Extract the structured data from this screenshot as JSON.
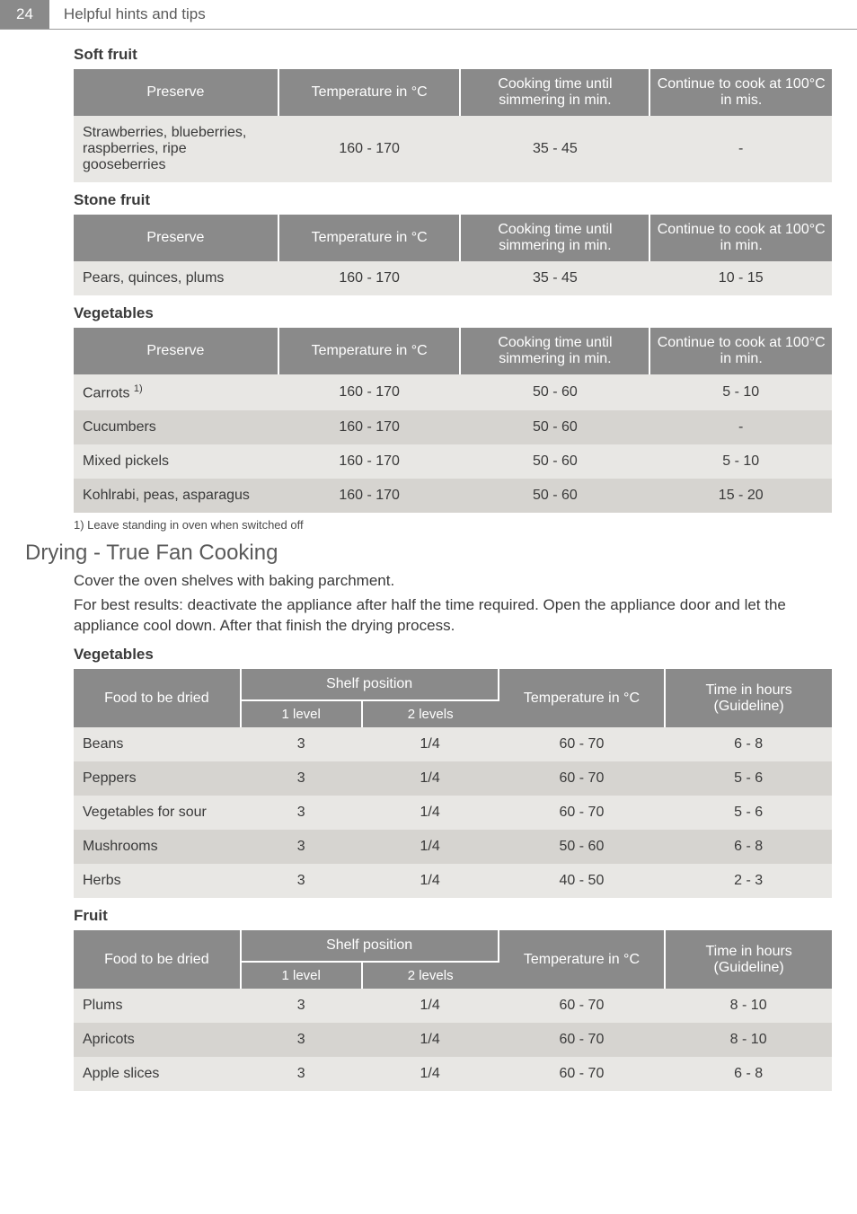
{
  "header": {
    "page_number": "24",
    "section_title": "Helpful hints and tips"
  },
  "soft_fruit": {
    "heading": "Soft fruit",
    "columns": [
      "Preserve",
      "Temperature in °C",
      "Cooking time until simmering in min.",
      "Continue to cook at 100°C in mis."
    ],
    "rows": [
      {
        "preserve": "Strawberries, blueberries, raspberries, ripe gooseberries",
        "temp": "160 - 170",
        "cook": "35 - 45",
        "cont": "-"
      }
    ]
  },
  "stone_fruit": {
    "heading": "Stone fruit",
    "columns": [
      "Preserve",
      "Temperature in °C",
      "Cooking time until simmering in min.",
      "Continue to cook at 100°C in min."
    ],
    "rows": [
      {
        "preserve": "Pears, quinces, plums",
        "temp": "160 - 170",
        "cook": "35 - 45",
        "cont": "10 - 15"
      }
    ]
  },
  "vegetables": {
    "heading": "Vegetables",
    "columns": [
      "Preserve",
      "Temperature in °C",
      "Cooking time until simmering in min.",
      "Continue to cook at 100°C in min."
    ],
    "rows": [
      {
        "preserve_html": "Carrots <span class=\"sup\">1)</span>",
        "preserve": "Carrots 1)",
        "temp": "160 - 170",
        "cook": "50 - 60",
        "cont": "5 - 10"
      },
      {
        "preserve": "Cucumbers",
        "temp": "160 - 170",
        "cook": "50 - 60",
        "cont": "-"
      },
      {
        "preserve": "Mixed pickels",
        "temp": "160 - 170",
        "cook": "50 - 60",
        "cont": "5 - 10"
      },
      {
        "preserve": "Kohlrabi, peas, asparagus",
        "temp": "160 - 170",
        "cook": "50 - 60",
        "cont": "15 - 20"
      }
    ],
    "footnote": "1) Leave standing in oven when switched off"
  },
  "drying": {
    "title": "Drying - True Fan Cooking",
    "para1": "Cover the oven shelves with baking parchment.",
    "para2": "For best results: deactivate the appliance after half the time required. Open the appliance door and let the appliance cool down. After that finish the drying process."
  },
  "drying_veg": {
    "heading": "Vegetables",
    "columns": {
      "food": "Food to be dried",
      "shelf": "Shelf position",
      "l1": "1 level",
      "l2": "2 levels",
      "temp": "Temperature in °C",
      "time": "Time in hours (Guideline)"
    },
    "rows": [
      {
        "food": "Beans",
        "l1": "3",
        "l2": "1/4",
        "temp": "60 - 70",
        "time": "6 - 8"
      },
      {
        "food": "Peppers",
        "l1": "3",
        "l2": "1/4",
        "temp": "60 - 70",
        "time": "5 - 6"
      },
      {
        "food": "Vegetables for sour",
        "l1": "3",
        "l2": "1/4",
        "temp": "60 - 70",
        "time": "5 - 6"
      },
      {
        "food": "Mushrooms",
        "l1": "3",
        "l2": "1/4",
        "temp": "50 - 60",
        "time": "6 - 8"
      },
      {
        "food": "Herbs",
        "l1": "3",
        "l2": "1/4",
        "temp": "40 - 50",
        "time": "2 - 3"
      }
    ]
  },
  "drying_fruit": {
    "heading": "Fruit",
    "columns": {
      "food": "Food to be dried",
      "shelf": "Shelf position",
      "l1": "1 level",
      "l2": "2 levels",
      "temp": "Temperature in °C",
      "time": "Time in hours (Guideline)"
    },
    "rows": [
      {
        "food": "Plums",
        "l1": "3",
        "l2": "1/4",
        "temp": "60 - 70",
        "time": "8 - 10"
      },
      {
        "food": "Apricots",
        "l1": "3",
        "l2": "1/4",
        "temp": "60 - 70",
        "time": "8 - 10"
      },
      {
        "food": "Apple slices",
        "l1": "3",
        "l2": "1/4",
        "temp": "60 - 70",
        "time": "6 - 8"
      }
    ]
  },
  "col_widths": {
    "c4_preserve": "27%",
    "c4_temp": "24%",
    "c4_cook": "25%",
    "c4_cont": "24%",
    "c5_food": "22%",
    "c5_l1": "16%",
    "c5_l2": "18%",
    "c5_temp": "22%",
    "c5_time": "22%"
  }
}
